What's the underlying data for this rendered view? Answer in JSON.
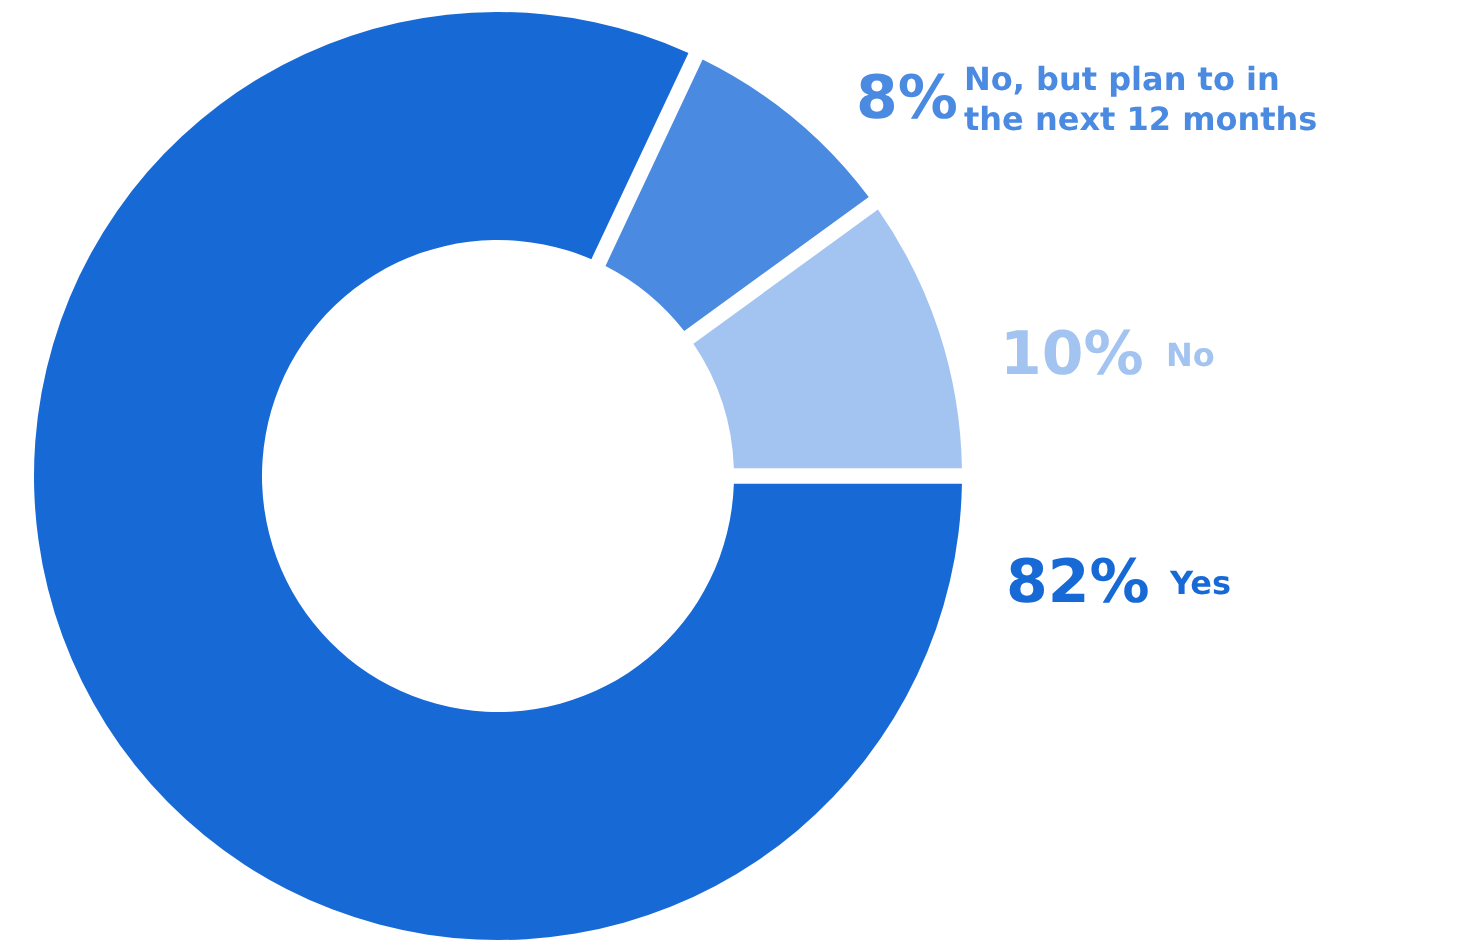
{
  "chart_data": {
    "type": "donut",
    "categories": [
      "Yes",
      "No, but plan to in the next 12 months",
      "No"
    ],
    "values": [
      82,
      8,
      10
    ],
    "colors": [
      "#176ad6",
      "#4a8ae0",
      "#a3c4f0"
    ],
    "value_labels": [
      "82%",
      "8%",
      "10%"
    ]
  }
}
